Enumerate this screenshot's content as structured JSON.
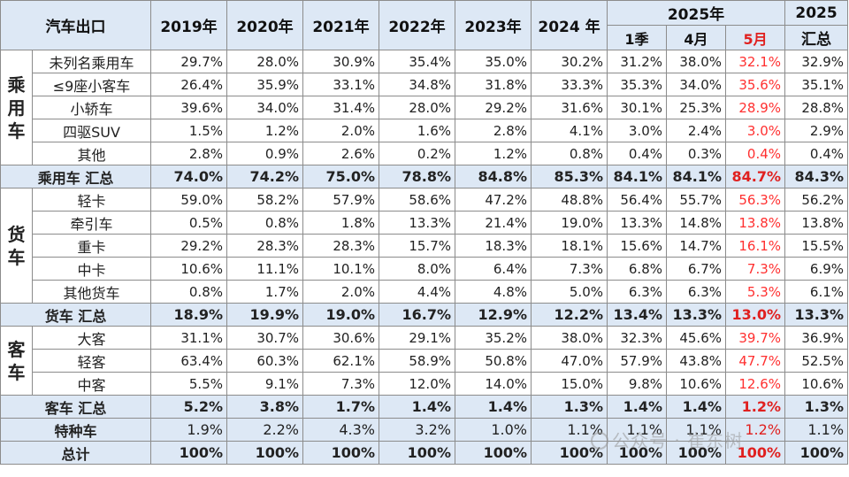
{
  "header": {
    "corner": "汽车出口",
    "years": [
      "2019年",
      "2020年",
      "2021年",
      "2022年",
      "2023年",
      "2024 年"
    ],
    "group_2025": "2025年",
    "sub_2025": [
      "1季",
      "4月",
      "5月"
    ],
    "last_col": [
      "2025",
      "汇总"
    ]
  },
  "groups": [
    {
      "label": "乘用车",
      "rows": [
        {
          "name": "未列名乘用车",
          "values": [
            "29.7%",
            "28.0%",
            "30.9%",
            "35.4%",
            "35.0%",
            "30.2%",
            "31.2%",
            "38.0%",
            "32.1%",
            "32.9%"
          ]
        },
        {
          "name": "≤9座小客车",
          "values": [
            "26.4%",
            "35.9%",
            "33.1%",
            "34.8%",
            "31.8%",
            "33.3%",
            "35.3%",
            "34.0%",
            "35.6%",
            "35.1%"
          ]
        },
        {
          "name": "小轿车",
          "values": [
            "39.6%",
            "34.0%",
            "31.4%",
            "28.0%",
            "29.2%",
            "31.6%",
            "30.1%",
            "25.3%",
            "28.9%",
            "28.8%"
          ]
        },
        {
          "name": "四驱SUV",
          "values": [
            "1.5%",
            "1.2%",
            "2.0%",
            "1.6%",
            "2.8%",
            "4.1%",
            "3.0%",
            "2.4%",
            "3.0%",
            "2.9%"
          ]
        },
        {
          "name": "其他",
          "values": [
            "2.8%",
            "0.9%",
            "2.6%",
            "0.2%",
            "1.2%",
            "0.8%",
            "0.4%",
            "0.3%",
            "0.4%",
            "0.4%"
          ]
        }
      ],
      "summary": {
        "name": "乘用车 汇总",
        "values": [
          "74.0%",
          "74.2%",
          "75.0%",
          "78.8%",
          "84.8%",
          "85.3%",
          "84.1%",
          "84.1%",
          "84.7%",
          "84.3%"
        ]
      }
    },
    {
      "label": "货车",
      "rows": [
        {
          "name": "轻卡",
          "values": [
            "59.0%",
            "58.2%",
            "57.9%",
            "58.6%",
            "47.2%",
            "48.8%",
            "56.4%",
            "55.7%",
            "56.3%",
            "56.2%"
          ]
        },
        {
          "name": "牵引车",
          "values": [
            "0.5%",
            "0.8%",
            "1.8%",
            "13.3%",
            "21.4%",
            "19.0%",
            "13.3%",
            "14.8%",
            "13.8%",
            "13.8%"
          ]
        },
        {
          "name": "重卡",
          "values": [
            "29.2%",
            "28.3%",
            "28.3%",
            "15.7%",
            "18.3%",
            "18.1%",
            "15.6%",
            "14.7%",
            "16.1%",
            "15.5%"
          ]
        },
        {
          "name": "中卡",
          "values": [
            "10.6%",
            "11.1%",
            "10.1%",
            "8.0%",
            "6.4%",
            "7.3%",
            "6.8%",
            "6.7%",
            "7.3%",
            "6.9%"
          ]
        },
        {
          "name": "其他货车",
          "values": [
            "0.8%",
            "1.7%",
            "2.0%",
            "4.4%",
            "4.8%",
            "5.0%",
            "6.3%",
            "6.3%",
            "5.3%",
            "6.1%"
          ]
        }
      ],
      "summary": {
        "name": "货车 汇总",
        "values": [
          "18.9%",
          "19.9%",
          "19.0%",
          "16.7%",
          "12.9%",
          "12.2%",
          "13.4%",
          "13.3%",
          "13.0%",
          "13.3%"
        ]
      }
    },
    {
      "label": "客车",
      "rows": [
        {
          "name": "大客",
          "values": [
            "31.1%",
            "30.7%",
            "30.6%",
            "29.1%",
            "35.2%",
            "38.0%",
            "32.3%",
            "45.6%",
            "39.7%",
            "36.9%"
          ]
        },
        {
          "name": "轻客",
          "values": [
            "63.4%",
            "60.3%",
            "62.1%",
            "58.9%",
            "50.8%",
            "47.0%",
            "57.9%",
            "43.8%",
            "47.7%",
            "52.5%"
          ]
        },
        {
          "name": "中客",
          "values": [
            "5.5%",
            "9.1%",
            "7.3%",
            "12.0%",
            "14.0%",
            "15.0%",
            "9.8%",
            "10.6%",
            "12.6%",
            "10.6%"
          ]
        }
      ],
      "summary": {
        "name": "客车 汇总",
        "values": [
          "5.2%",
          "3.8%",
          "1.7%",
          "1.4%",
          "1.4%",
          "1.3%",
          "1.4%",
          "1.4%",
          "1.2%",
          "1.3%"
        ]
      }
    }
  ],
  "special": {
    "name": "特种车",
    "values": [
      "1.9%",
      "2.2%",
      "4.3%",
      "3.2%",
      "1.0%",
      "1.1%",
      "1.1%",
      "1.1%",
      "1.2%",
      "1.1%"
    ]
  },
  "total": {
    "name": "总计",
    "values": [
      "100%",
      "100%",
      "100%",
      "100%",
      "100%",
      "100%",
      "100%",
      "100%",
      "100%",
      "100%"
    ]
  },
  "watermark": "公众号 · 崔东树",
  "highlight_color": "#ff3030"
}
